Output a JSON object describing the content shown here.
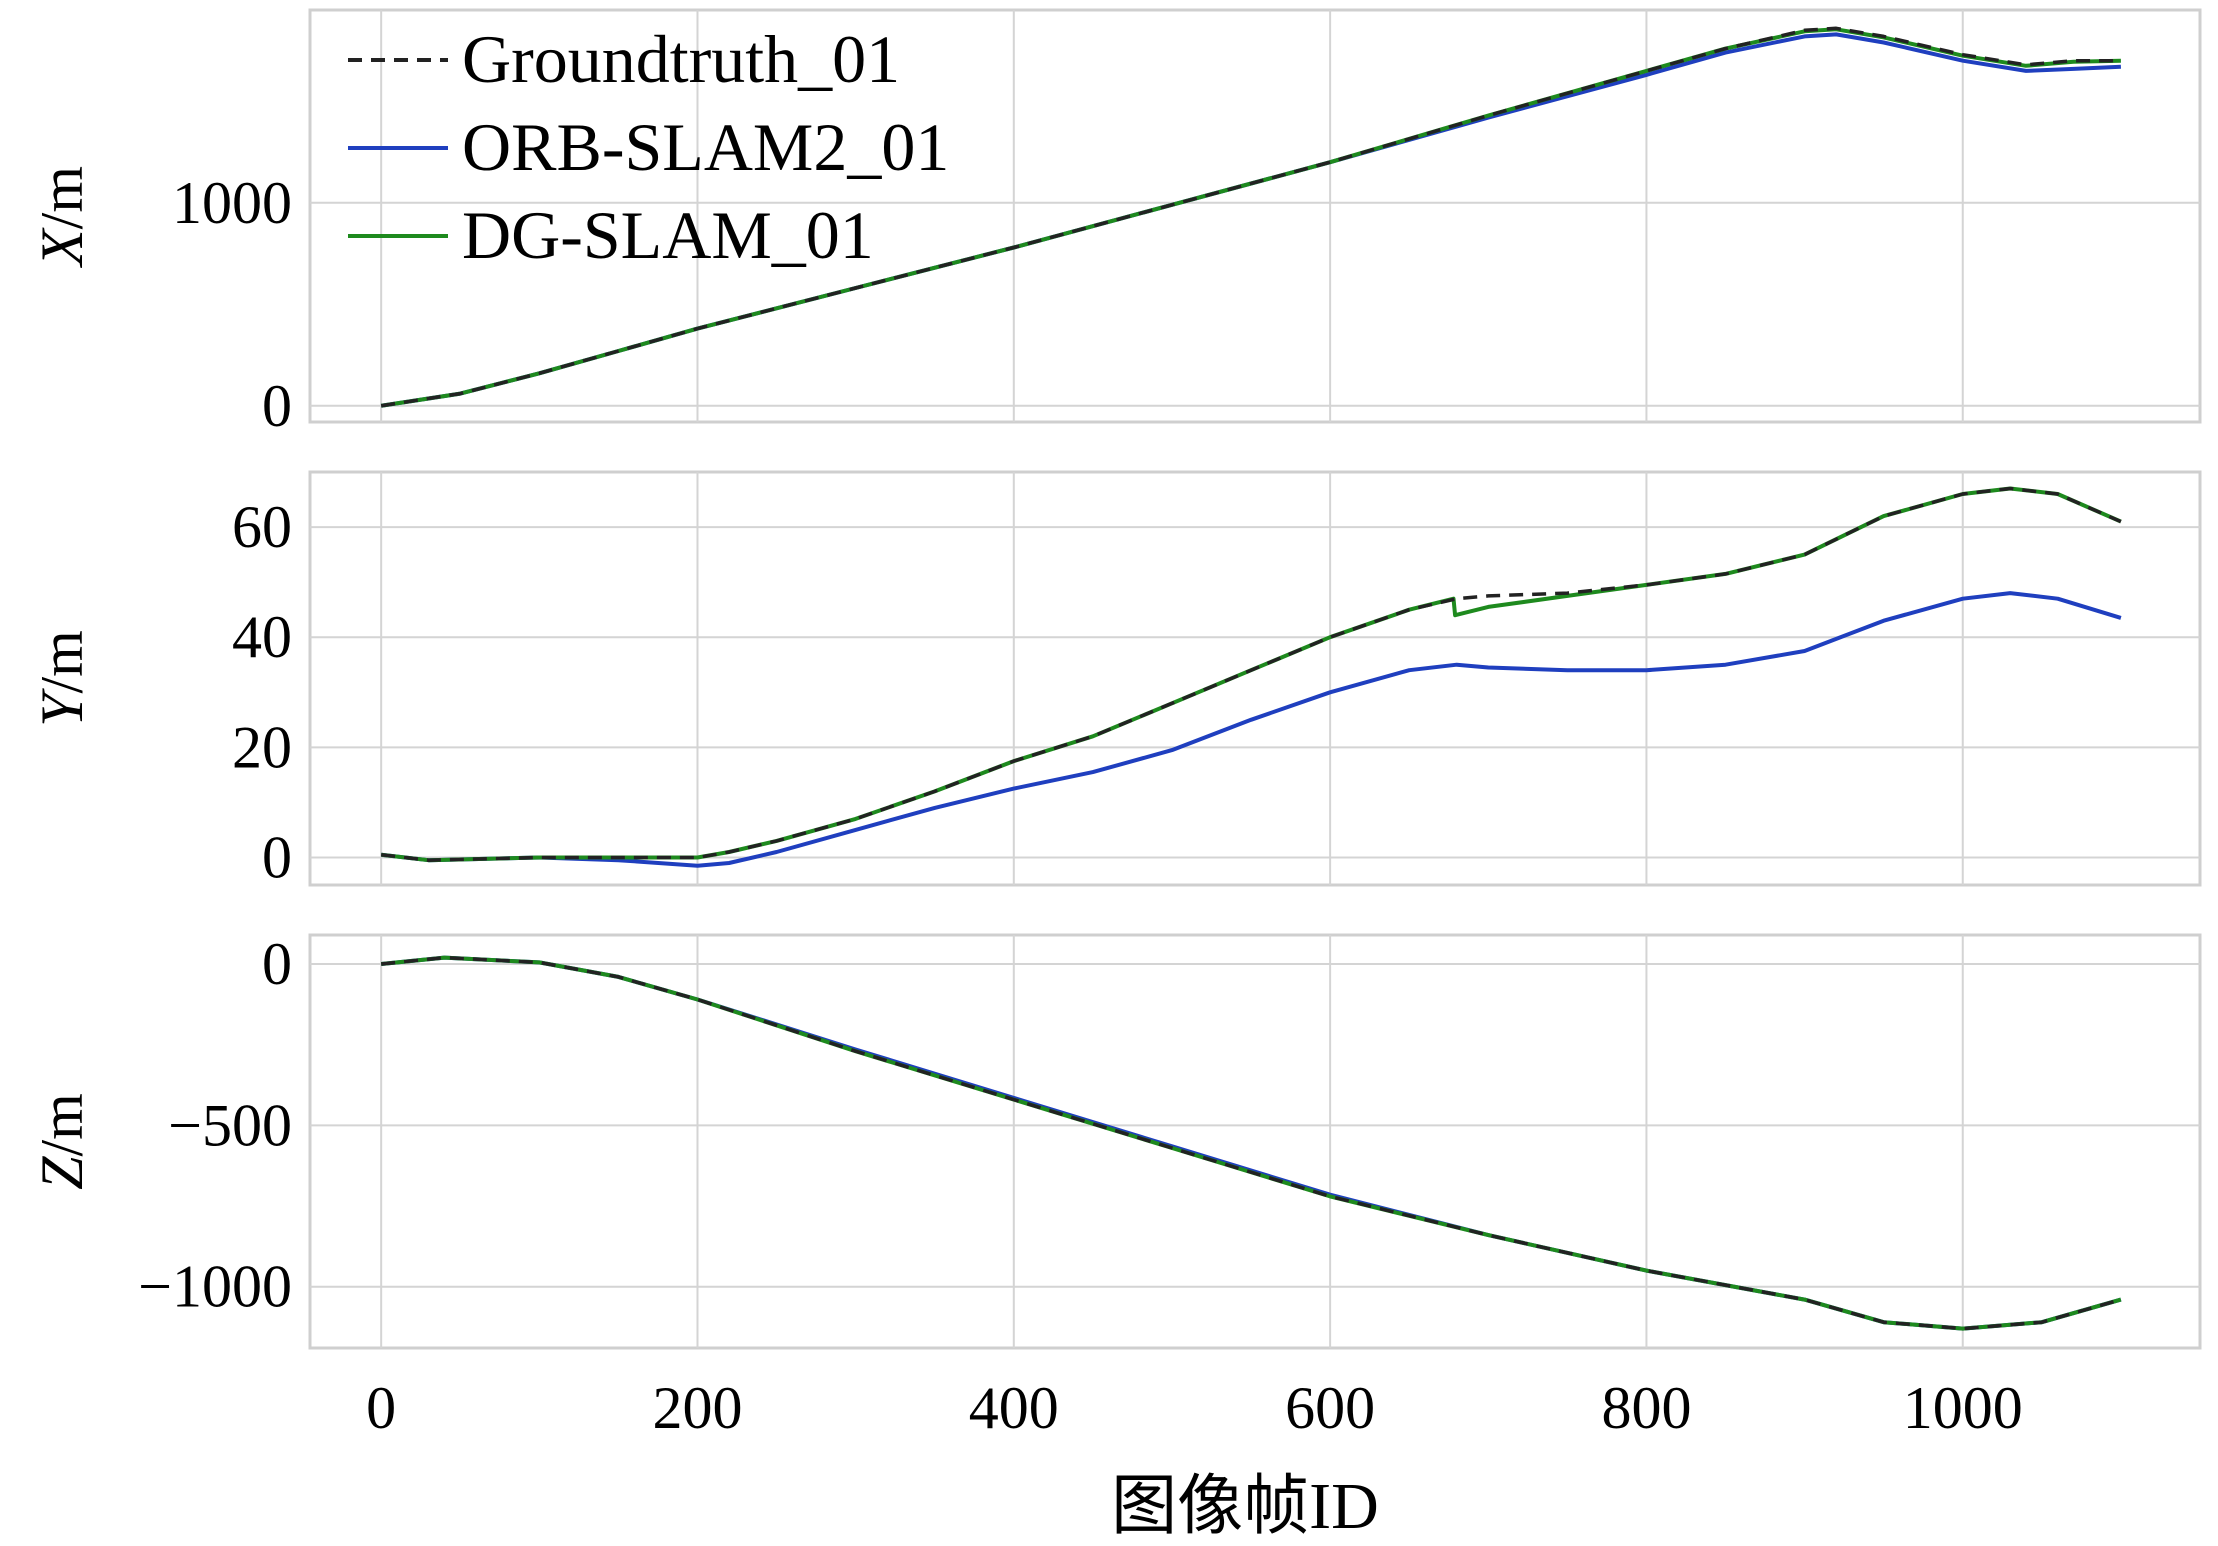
{
  "chart_data": {
    "type": "line",
    "xlabel": "图像帧ID",
    "xlim": [
      -45,
      1150
    ],
    "xticks": [
      0,
      200,
      400,
      600,
      800,
      1000
    ],
    "grid": true,
    "legend": {
      "placement": "top-left",
      "entries": [
        {
          "name": "Groundtruth_01",
          "color": "#222222",
          "style": "dashed"
        },
        {
          "name": "ORB-SLAM2_01",
          "color": "#1f3fbf",
          "style": "solid"
        },
        {
          "name": "DG-SLAM_01",
          "color": "#1e8a1e",
          "style": "solid"
        }
      ]
    },
    "panels": [
      {
        "ylabel_italic": "X",
        "ylabel_rest": "/m",
        "ylim": [
          -80,
          1950
        ],
        "yticks": [
          0,
          1000
        ],
        "series": [
          {
            "name": "Groundtruth_01",
            "x": [
              0,
              50,
              100,
              150,
              200,
              300,
              400,
              500,
              600,
              700,
              800,
              850,
              900,
              920,
              950,
              1000,
              1040,
              1070,
              1100
            ],
            "y": [
              0,
              60,
              160,
              270,
              380,
              580,
              780,
              990,
              1200,
              1430,
              1650,
              1760,
              1850,
              1860,
              1820,
              1730,
              1680,
              1700,
              1700
            ]
          },
          {
            "name": "ORB-SLAM2_01",
            "x": [
              0,
              50,
              100,
              150,
              200,
              300,
              400,
              500,
              600,
              700,
              800,
              850,
              900,
              920,
              950,
              1000,
              1040,
              1070,
              1100
            ],
            "y": [
              0,
              60,
              160,
              270,
              380,
              580,
              780,
              990,
              1200,
              1420,
              1630,
              1740,
              1820,
              1830,
              1790,
              1700,
              1650,
              1660,
              1670
            ]
          },
          {
            "name": "DG-SLAM_01",
            "x": [
              0,
              50,
              100,
              150,
              200,
              300,
              400,
              500,
              600,
              700,
              800,
              850,
              900,
              920,
              950,
              1000,
              1040,
              1070,
              1100
            ],
            "y": [
              0,
              60,
              160,
              270,
              380,
              580,
              780,
              990,
              1200,
              1430,
              1650,
              1760,
              1845,
              1855,
              1815,
              1725,
              1675,
              1695,
              1700
            ]
          }
        ]
      },
      {
        "ylabel_italic": "Y",
        "ylabel_rest": "/m",
        "ylim": [
          -5,
          70
        ],
        "yticks": [
          0,
          20,
          40,
          60
        ],
        "series": [
          {
            "name": "Groundtruth_01",
            "x": [
              0,
              30,
              100,
              150,
              200,
              220,
              250,
              300,
              350,
              400,
              450,
              500,
              550,
              600,
              650,
              680,
              700,
              750,
              800,
              850,
              900,
              950,
              1000,
              1030,
              1060,
              1100
            ],
            "y": [
              0.5,
              -0.5,
              0,
              0,
              0,
              1,
              3,
              7,
              12,
              17.5,
              22,
              28,
              34,
              40,
              45,
              47,
              47.5,
              48,
              49.5,
              51.5,
              55,
              62,
              66,
              67,
              66,
              61
            ]
          },
          {
            "name": "ORB-SLAM2_01",
            "x": [
              0,
              30,
              100,
              150,
              200,
              220,
              250,
              300,
              350,
              400,
              450,
              500,
              550,
              600,
              650,
              680,
              700,
              750,
              800,
              850,
              900,
              950,
              1000,
              1030,
              1060,
              1100
            ],
            "y": [
              0.5,
              -0.5,
              0,
              -0.5,
              -1.5,
              -1,
              1,
              5,
              9,
              12.5,
              15.5,
              19.5,
              25,
              30,
              34,
              35,
              34.5,
              34,
              34,
              35,
              37.5,
              43,
              47,
              48,
              47,
              43.5
            ]
          },
          {
            "name": "DG-SLAM_01",
            "x": [
              0,
              30,
              100,
              150,
              200,
              220,
              250,
              300,
              350,
              400,
              450,
              500,
              550,
              600,
              650,
              678,
              679,
              700,
              750,
              800,
              850,
              900,
              950,
              1000,
              1030,
              1060,
              1100
            ],
            "y": [
              0.5,
              -0.5,
              0,
              0,
              0,
              1,
              3,
              7,
              12,
              17.5,
              22,
              28,
              34,
              40,
              45,
              47,
              44,
              45.5,
              47.5,
              49.5,
              51.5,
              55,
              62,
              66,
              67,
              66,
              61
            ]
          }
        ]
      },
      {
        "ylabel_italic": "Z",
        "ylabel_rest": "/m",
        "ylim": [
          -1190,
          90
        ],
        "yticks": [
          0,
          -500,
          -1000
        ],
        "ytick_labels": [
          "0",
          "−500",
          "−1000"
        ],
        "series": [
          {
            "name": "Groundtruth_01",
            "x": [
              0,
              40,
              100,
              150,
              200,
              300,
              400,
              500,
              600,
              700,
              800,
              900,
              950,
              1000,
              1050,
              1100
            ],
            "y": [
              0,
              20,
              5,
              -40,
              -110,
              -270,
              -420,
              -570,
              -720,
              -840,
              -950,
              -1040,
              -1110,
              -1130,
              -1110,
              -1040
            ]
          },
          {
            "name": "ORB-SLAM2_01",
            "x": [
              0,
              40,
              100,
              150,
              200,
              300,
              400,
              500,
              600,
              700,
              800,
              900,
              950,
              1000,
              1050,
              1100
            ],
            "y": [
              0,
              20,
              5,
              -40,
              -110,
              -265,
              -415,
              -565,
              -715,
              -840,
              -950,
              -1040,
              -1110,
              -1130,
              -1110,
              -1040
            ]
          },
          {
            "name": "DG-SLAM_01",
            "x": [
              0,
              40,
              100,
              150,
              200,
              300,
              400,
              500,
              600,
              700,
              800,
              900,
              950,
              1000,
              1050,
              1100
            ],
            "y": [
              0,
              20,
              5,
              -40,
              -110,
              -270,
              -420,
              -570,
              -720,
              -840,
              -950,
              -1040,
              -1110,
              -1130,
              -1110,
              -1040
            ]
          }
        ]
      }
    ]
  }
}
